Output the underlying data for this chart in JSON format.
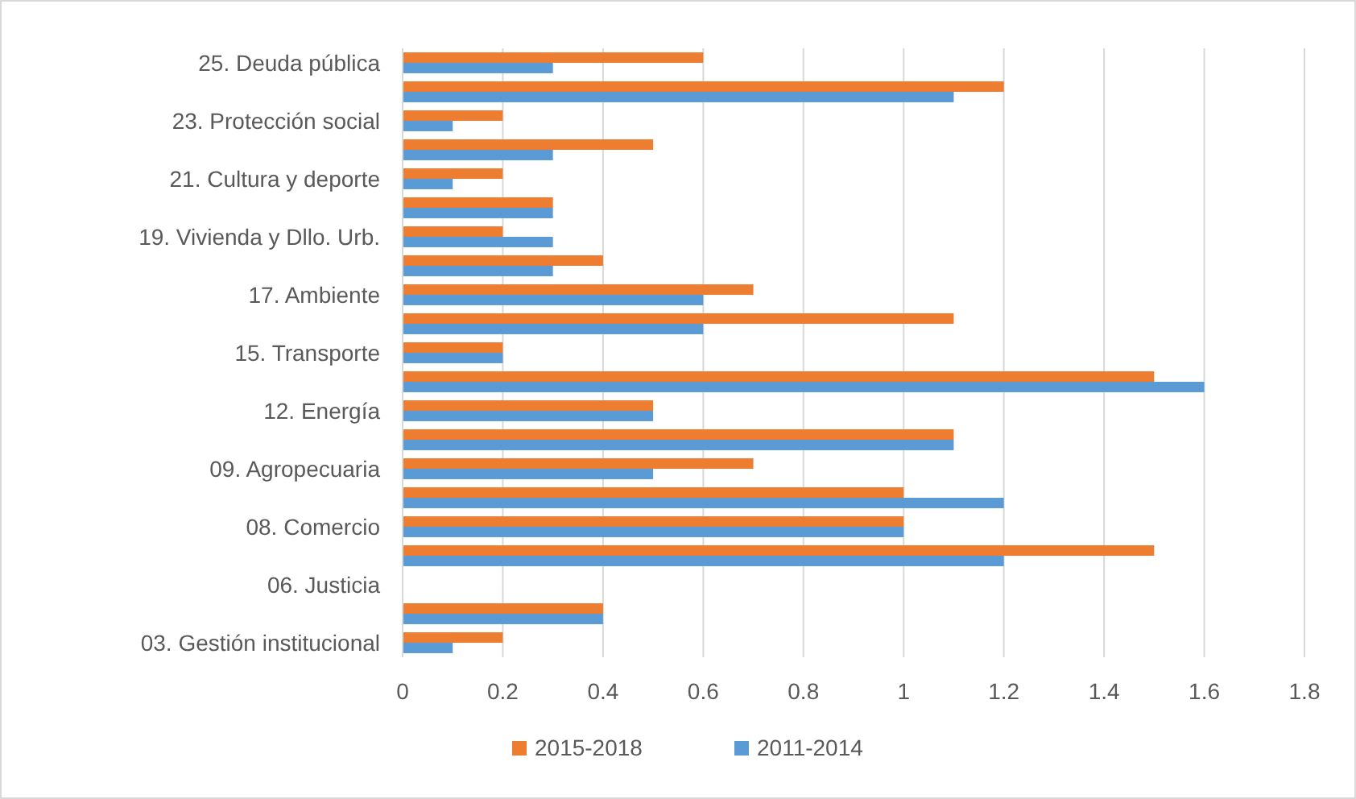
{
  "chart_data": {
    "type": "bar",
    "orientation": "horizontal",
    "categories": [
      "25. Deuda pública",
      null,
      "23. Protección social",
      null,
      "21. Cultura y deporte",
      null,
      "19. Vivienda y Dllo. Urb.",
      null,
      "17. Ambiente",
      null,
      "15. Transporte",
      null,
      "12. Energía",
      null,
      "09. Agropecuaria",
      null,
      "08. Comercio",
      null,
      "06. Justicia",
      null,
      "03. Gestión institucional"
    ],
    "series": [
      {
        "name": "2015-2018",
        "color": "#ed7d31",
        "values": [
          0.6,
          1.2,
          0.2,
          0.5,
          0.2,
          0.3,
          0.2,
          0.4,
          0.7,
          1.1,
          0.2,
          1.5,
          0.5,
          1.1,
          0.7,
          1.0,
          1.0,
          1.5,
          0,
          0.4,
          0.2
        ]
      },
      {
        "name": "2011-2014",
        "color": "#5b9bd5",
        "values": [
          0.3,
          1.1,
          0.1,
          0.3,
          0.1,
          0.3,
          0.3,
          0.3,
          0.6,
          0.6,
          0.2,
          1.6,
          0.5,
          1.1,
          0.5,
          1.2,
          1.0,
          1.2,
          0,
          0.4,
          0.1
        ]
      }
    ],
    "xlim": [
      0,
      1.8
    ],
    "xticks": [
      0,
      {
        "value": 0.2,
        "label": "0.2"
      },
      {
        "value": 0.4,
        "label": "0.4"
      },
      {
        "value": 0.6,
        "label": "0.6"
      },
      {
        "value": 0.8,
        "label": "0.8"
      },
      1,
      {
        "value": 1.2,
        "label": "1.2"
      },
      {
        "value": 1.4,
        "label": "1.4"
      },
      {
        "value": 1.6,
        "label": "1.6"
      },
      {
        "value": 1.8,
        "label": "1.8"
      }
    ],
    "grid": "x",
    "legend": "bottom"
  }
}
